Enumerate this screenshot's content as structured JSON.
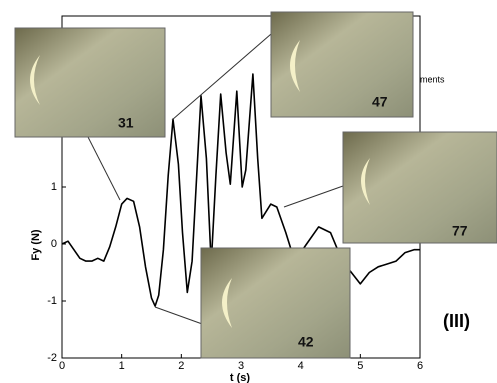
{
  "chart_data": {
    "type": "line",
    "xlabel": "t (s)",
    "ylabel": "Fy (N)",
    "x": [
      0,
      0.1,
      0.2,
      0.3,
      0.4,
      0.5,
      0.6,
      0.7,
      0.8,
      0.9,
      1.0,
      1.09,
      1.2,
      1.3,
      1.4,
      1.5,
      1.56,
      1.62,
      1.7,
      1.78,
      1.86,
      1.95,
      2.02,
      2.1,
      2.18,
      2.33,
      2.42,
      2.5,
      2.58,
      2.66,
      2.75,
      2.82,
      2.93,
      3.02,
      3.08,
      3.2,
      3.28,
      3.35,
      3.5,
      3.6,
      3.75,
      3.9,
      4.1,
      4.3,
      4.5,
      4.7,
      4.85,
      5.0,
      5.15,
      5.3,
      5.45,
      5.6,
      5.75,
      5.9,
      6.0
    ],
    "values": [
      0.0,
      0.05,
      -0.1,
      -0.25,
      -0.3,
      -0.3,
      -0.25,
      -0.3,
      -0.05,
      0.3,
      0.7,
      0.8,
      0.75,
      0.3,
      -0.4,
      -0.95,
      -1.09,
      -0.9,
      -0.1,
      1.2,
      2.19,
      1.4,
      0.2,
      -0.85,
      -0.3,
      2.6,
      1.5,
      -0.35,
      1.2,
      2.63,
      1.6,
      1.05,
      2.68,
      1.0,
      1.3,
      2.98,
      1.5,
      0.45,
      0.7,
      0.65,
      0.2,
      -0.3,
      0.0,
      0.3,
      0.2,
      -0.3,
      -0.5,
      -0.7,
      -0.5,
      -0.4,
      -0.35,
      -0.3,
      -0.15,
      -0.1,
      -0.1
    ],
    "color": "#000000",
    "xlim": [
      0,
      6
    ],
    "xticks": [
      0,
      1,
      2,
      3,
      4,
      5,
      6
    ],
    "ylim": [
      -2,
      4
    ],
    "yticks": [
      -2,
      -1,
      0,
      1
    ],
    "annotations": [
      "31",
      "47",
      "77",
      "42",
      "(III)",
      "ments"
    ]
  }
}
